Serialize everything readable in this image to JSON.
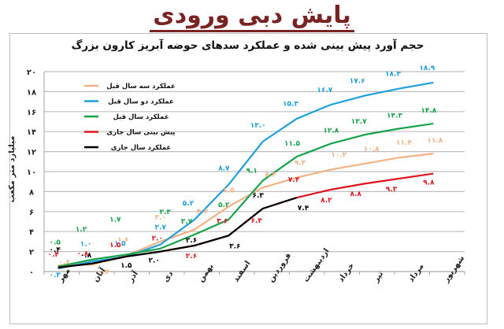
{
  "page": {
    "title": "پایش دبی ورودی"
  },
  "chart_data": {
    "type": "line",
    "title": "حجم آورد پیش بینی شده و عملکرد سدهای حوضه آبریز کارون بزرگ",
    "xlabel": "",
    "ylabel": "میلیارد متر مکعب",
    "ylim": [
      0,
      20
    ],
    "yticks": [
      0,
      2,
      4,
      6,
      8,
      10,
      12,
      14,
      16,
      18,
      20
    ],
    "ytick_labels": [
      "۰",
      "۲",
      "۴",
      "۶",
      "۸",
      "۱۰",
      "۱۲",
      "۱۴",
      "۱۶",
      "۱۸",
      "۲۰"
    ],
    "grid": true,
    "legend_position": "upper-left",
    "categories": [
      "مهر",
      "آبان",
      "آذر",
      "دی",
      "بهمن",
      "اسفند",
      "فروردین",
      "اردیبهشت",
      "خرداد",
      "تیر",
      "مرداد",
      "شهریور"
    ],
    "series": [
      {
        "name": "عملکرد سه سال قبل",
        "color": "#f4b183",
        "values": [
          0.6,
          0.7,
          1.6,
          3.0,
          4.2,
          6.5,
          8.4,
          9.4,
          10.2,
          10.8,
          11.4,
          11.8
        ],
        "labels": [
          "۰.۶",
          "۰.۷",
          "۱.۶",
          "۳.۰",
          "۴.۲",
          "۶.۵",
          "۸.۴",
          "۹.۴",
          "۱۰.۲",
          "۱۰.۸",
          "۱۱.۴",
          "۱۱.۸"
        ]
      },
      {
        "name": "عملکرد دو سال قبل",
        "color": "#1fa0dc",
        "values": [
          0.3,
          1.0,
          1.5,
          2.7,
          5.2,
          8.7,
          13.0,
          15.3,
          16.7,
          17.6,
          18.3,
          18.9
        ],
        "labels": [
          "۰.۳",
          "۱.۰",
          "۱.۵",
          "۲.۷",
          "۵.۲",
          "۸.۷",
          "۱۳.۰",
          "۱۵.۳",
          "۱۶.۷",
          "۱۷.۶",
          "۱۸.۳",
          "۱۸.۹"
        ]
      },
      {
        "name": "عملکرد سال قبل",
        "color": "#16a34a",
        "values": [
          0.5,
          1.2,
          1.7,
          2.3,
          3.7,
          5.2,
          9.1,
          11.5,
          12.8,
          13.7,
          14.3,
          14.8
        ],
        "labels": [
          "۰.۵",
          "۱.۲",
          "۱.۷",
          "۲.۳",
          "۳.۷",
          "۵.۲",
          "۹.۱",
          "۱۱.۵",
          "۱۲.۸",
          "۱۳.۷",
          "۱۴.۳",
          "۱۴.۸"
        ]
      },
      {
        "name": "پیش بینی سال جاری",
        "color": "#e0141e",
        "values": [
          0.4,
          0.8,
          1.5,
          2.0,
          2.6,
          3.6,
          6.3,
          7.4,
          8.2,
          8.8,
          9.3,
          9.8
        ],
        "labels": [
          "۰.۴",
          "۰.۸",
          "۱.۵",
          "۲.۰",
          "۲.۶",
          "۳.۶",
          "۶.۳",
          "۷.۴",
          "۸.۲",
          "۸.۸",
          "۹.۳",
          "۹.۸"
        ]
      },
      {
        "name": "عملکرد سال جاری",
        "color": "#000000",
        "values": [
          0.4,
          0.8,
          1.5,
          2.0,
          2.6,
          3.6,
          6.3,
          7.4
        ],
        "labels": [
          "۰.۴",
          "۰.۸",
          "۱.۵",
          "۲.۰",
          "۲.۶",
          "۳.۶",
          "۶.۳",
          "۷.۴"
        ]
      }
    ]
  }
}
